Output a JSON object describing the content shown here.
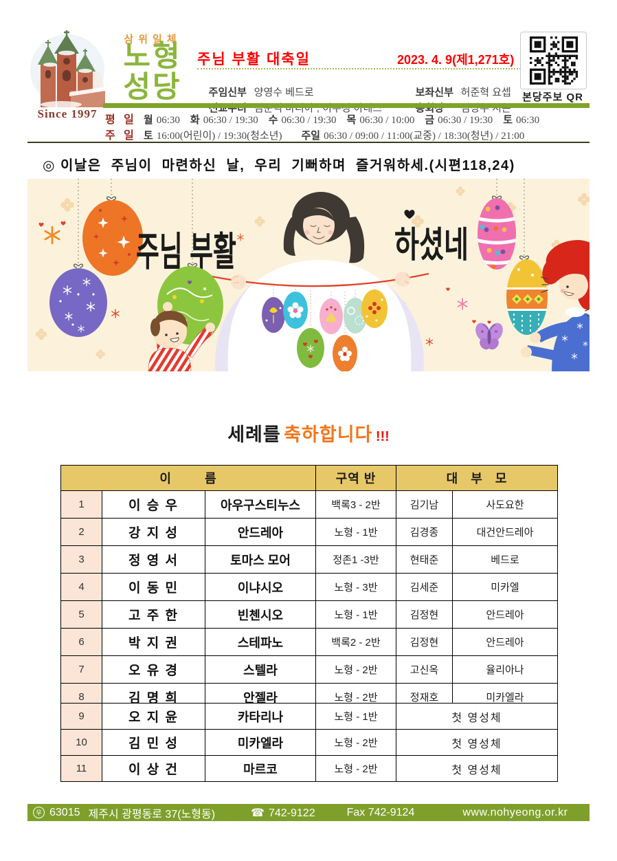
{
  "masthead": {
    "trinity": "삼위일체",
    "logo_line1": "노형",
    "logo_line2": "성당",
    "since": "Since 1997",
    "title": "주님 부활 대축일",
    "issue": "2023. 4. 9(제1,271호)",
    "clergy": [
      {
        "role": "주임신부",
        "name": "양영수 베드로"
      },
      {
        "role": "보좌신부",
        "name": "허준혁 요셉"
      },
      {
        "role": "전교수녀",
        "name": "김순덕 마리아 , 이수경 아녜스"
      },
      {
        "role": "총회장",
        "name": "김상우 시몬"
      }
    ],
    "qr_label": "본당주보 QR"
  },
  "schedule": {
    "weekday_label": "평 일",
    "weekday": [
      {
        "day": "월",
        "times": "06:30"
      },
      {
        "day": "화",
        "times": "06:30 / 19:30"
      },
      {
        "day": "수",
        "times": "06:30 / 19:30"
      },
      {
        "day": "목",
        "times": "06:30 / 10:00"
      },
      {
        "day": "금",
        "times": "06:30 / 19:30"
      },
      {
        "day": "토",
        "times": "06:30"
      }
    ],
    "sunday_label": "주 일",
    "sunday": [
      {
        "day": "토",
        "times": "16:00(어린이) / 19:30(청소년)"
      },
      {
        "day": "주일",
        "times": "06:30 / 09:00 / 11:00(교중) / 18:30(청년) / 21:00"
      }
    ]
  },
  "quote": "◎ 이날은  주님이  마련하신  날,  우리  기뻐하며  즐거워하세.(시편118,24)",
  "banner": {
    "text_left": "주님 부활",
    "text_right": "하셨네"
  },
  "heading": {
    "part1": "세례를",
    "part2": "축하합니다",
    "part3": "!!!"
  },
  "baptism_table": {
    "headers": {
      "name": "이        름",
      "district": "구역 반",
      "sponsor": "대   부   모"
    },
    "rows": [
      {
        "no": "1",
        "name": "이 승 우",
        "baptismal": "아우구스티누스",
        "district": "백록3 - 2반",
        "sponsor": "김기남",
        "sponsor_baptismal": "사도요한"
      },
      {
        "no": "2",
        "name": "강 지 성",
        "baptismal": "안드레아",
        "district": "노형 - 1반",
        "sponsor": "김경종",
        "sponsor_baptismal": "대건안드레아"
      },
      {
        "no": "3",
        "name": "정 영 서",
        "baptismal": "토마스 모어",
        "district": "정존1 -3반",
        "sponsor": "현태준",
        "sponsor_baptismal": "베드로"
      },
      {
        "no": "4",
        "name": "이 동 민",
        "baptismal": "이냐시오",
        "district": "노형 - 3반",
        "sponsor": "김세준",
        "sponsor_baptismal": "미카엘"
      },
      {
        "no": "5",
        "name": "고 주 한",
        "baptismal": "빈첸시오",
        "district": "노형 - 1반",
        "sponsor": "김정현",
        "sponsor_baptismal": "안드레아"
      },
      {
        "no": "6",
        "name": "박 지 권",
        "baptismal": "스테파노",
        "district": "백록2 - 2반",
        "sponsor": "김정현",
        "sponsor_baptismal": "안드레아"
      },
      {
        "no": "7",
        "name": "오 유 경",
        "baptismal": "스텔라",
        "district": "노형 - 2반",
        "sponsor": "고신옥",
        "sponsor_baptismal": "율리아나"
      },
      {
        "no": "8",
        "name": "김 명 희",
        "baptismal": "안젤라",
        "district": "노형 - 2반",
        "sponsor": "정재호",
        "sponsor_baptismal": "미카엘라"
      }
    ]
  },
  "first_communion_table": {
    "rows": [
      {
        "no": "9",
        "name": "오 지 윤",
        "baptismal": "카타리나",
        "district": "노형 - 1반",
        "note": "첫 영성체"
      },
      {
        "no": "10",
        "name": "김 민 성",
        "baptismal": "미카엘라",
        "district": "노형 - 2반",
        "note": "첫 영성체"
      },
      {
        "no": "11",
        "name": "이 상 건",
        "baptismal": "마르코",
        "district": "노형 - 2반",
        "note": "첫 영성체"
      }
    ]
  },
  "footer": {
    "postal_symbol": "우",
    "zip": "63015",
    "address": "제주시  광평동로  37(노형동)",
    "phone_icon": "☎",
    "phone": "742-9122",
    "fax": "Fax  742-9124",
    "website": "www.nohyeong.or.kr"
  },
  "colors": {
    "accent_green": "#7FA32B",
    "logo_green": "#8CB53C",
    "title_red": "#FE0000",
    "label_maroon": "#9C2F1F",
    "table_header_gold": "#E7C868",
    "row_peach": "#FBE5D6",
    "heading_orange": "#F2761B",
    "footer_green": "#7EA02A",
    "banner_cream": "#FCF2DB"
  }
}
